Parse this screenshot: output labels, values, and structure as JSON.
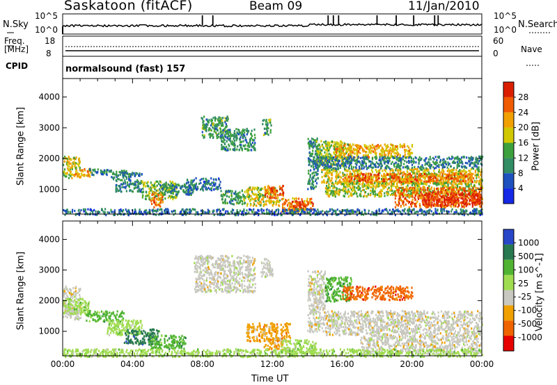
{
  "header": {
    "station": "Saskatoon (fitACF)",
    "beam": "Beam 09",
    "date": "11/Jan/2010"
  },
  "noise_panel": {
    "left_label": "N.Sky",
    "right_label": "N.Search",
    "left_ticks": [
      "10^5",
      "10^0"
    ],
    "right_ticks": [
      "10^5",
      "10^0"
    ],
    "spikes_hours": [
      8.0,
      8.6,
      15.2,
      15.5,
      15.8,
      18.0,
      19.1,
      20.1,
      21.3,
      21.5
    ]
  },
  "freq_panel": {
    "left_label_1": "Freq.",
    "left_label_2": "[MHz]",
    "right_label": "Nave",
    "left_ticks": [
      "18",
      "8"
    ],
    "right_ticks": [
      "60",
      "0"
    ]
  },
  "cpid": {
    "label": "CPID",
    "text": "normalsound (fast) 157"
  },
  "colors": {
    "power_scale": [
      "#1428e6",
      "#1e50be",
      "#328c64",
      "#3ca03c",
      "#d2c800",
      "#f0a000",
      "#f05a00",
      "#dc1e00"
    ],
    "velocity_scale": [
      "#2846c8",
      "#287850",
      "#50b432",
      "#a0dc50",
      "#c8c8c0",
      "#f0a000",
      "#f06400",
      "#e60000"
    ]
  },
  "chart_data": [
    {
      "type": "heatmap",
      "name": "power",
      "ylabel": "Slant Range [km]",
      "yticks": [
        "1000",
        "2000",
        "3000",
        "4000"
      ],
      "ylim": [
        200,
        4600
      ],
      "xlim": [
        0,
        24
      ],
      "colorbar": {
        "label": "Power [dB]",
        "ticks": [
          "4",
          "8",
          "12",
          "16",
          "20",
          "24",
          "28"
        ],
        "range": [
          0,
          32
        ]
      },
      "regions": [
        {
          "t0": 0.0,
          "t1": 1.0,
          "r0": 1400,
          "r1": 2100,
          "v": 18
        },
        {
          "t0": 0.6,
          "t1": 1.6,
          "r0": 1450,
          "r1": 1700,
          "v": 22
        },
        {
          "t0": 1.5,
          "t1": 2.7,
          "r0": 1500,
          "r1": 1700,
          "v": 10
        },
        {
          "t0": 2.7,
          "t1": 3.8,
          "r0": 1350,
          "r1": 1650,
          "v": 11
        },
        {
          "t0": 3.3,
          "t1": 4.5,
          "r0": 1450,
          "r1": 1600,
          "v": 9
        },
        {
          "t0": 3.0,
          "t1": 4.5,
          "r0": 950,
          "r1": 1350,
          "v": 10
        },
        {
          "t0": 4.5,
          "t1": 6.5,
          "r0": 700,
          "r1": 1300,
          "v": 15
        },
        {
          "t0": 5.0,
          "t1": 5.7,
          "r0": 450,
          "r1": 950,
          "v": 24
        },
        {
          "t0": 5.5,
          "t1": 7.5,
          "r0": 850,
          "r1": 1200,
          "v": 10
        },
        {
          "t0": 7.0,
          "t1": 9.0,
          "r0": 1000,
          "r1": 1400,
          "v": 8
        },
        {
          "t0": 7.9,
          "t1": 9.5,
          "r0": 2700,
          "r1": 3400,
          "v": 12
        },
        {
          "t0": 9.0,
          "t1": 11.0,
          "r0": 2300,
          "r1": 3000,
          "v": 11
        },
        {
          "t0": 11.4,
          "t1": 11.9,
          "r0": 2800,
          "r1": 3300,
          "v": 12
        },
        {
          "t0": 9.0,
          "t1": 10.5,
          "r0": 550,
          "r1": 1000,
          "v": 12
        },
        {
          "t0": 10.5,
          "t1": 12.4,
          "r0": 500,
          "r1": 1100,
          "v": 18
        },
        {
          "t0": 11.5,
          "t1": 12.6,
          "r0": 750,
          "r1": 1150,
          "v": 26
        },
        {
          "t0": 12.5,
          "t1": 14.2,
          "r0": 300,
          "r1": 750,
          "v": 22
        },
        {
          "t0": 13.0,
          "t1": 14.3,
          "r0": 350,
          "r1": 650,
          "v": 28
        },
        {
          "t0": 14.0,
          "t1": 14.6,
          "r0": 1000,
          "r1": 2700,
          "v": 10
        },
        {
          "t0": 14.5,
          "t1": 16.5,
          "r0": 1800,
          "r1": 2600,
          "v": 16
        },
        {
          "t0": 15.5,
          "t1": 20.0,
          "r0": 2050,
          "r1": 2500,
          "v": 21
        },
        {
          "t0": 14.8,
          "t1": 24.0,
          "r0": 1200,
          "r1": 1700,
          "v": 19
        },
        {
          "t0": 16.0,
          "t1": 23.5,
          "r0": 1250,
          "r1": 1550,
          "v": 25
        },
        {
          "t0": 15.0,
          "t1": 24.0,
          "r0": 800,
          "r1": 1250,
          "v": 17
        },
        {
          "t0": 19.0,
          "t1": 24.0,
          "r0": 450,
          "r1": 1100,
          "v": 26
        },
        {
          "t0": 20.5,
          "t1": 24.0,
          "r0": 500,
          "r1": 900,
          "v": 29
        },
        {
          "t0": 14.5,
          "t1": 24.0,
          "r0": 1700,
          "r1": 2100,
          "v": 9
        },
        {
          "t0": 0.0,
          "t1": 24.0,
          "r0": 200,
          "r1": 400,
          "v": 8
        }
      ]
    },
    {
      "type": "heatmap",
      "name": "velocity",
      "ylabel": "Slant Range [km]",
      "yticks": [
        "1000",
        "2000",
        "3000",
        "4000"
      ],
      "ylim": [
        200,
        4600
      ],
      "xlim": [
        0,
        24
      ],
      "colorbar": {
        "label": "Velocity [m s^-1]",
        "ticks": [
          "1000",
          "500",
          "100",
          "25",
          "-25",
          "-100",
          "-500",
          "-1000"
        ]
      },
      "regions": [
        {
          "t0": 0.0,
          "t1": 1.0,
          "r0": 1400,
          "r1": 2500,
          "c": 4
        },
        {
          "t0": 0.0,
          "t1": 1.5,
          "r0": 1600,
          "r1": 2100,
          "c": 3
        },
        {
          "t0": 1.2,
          "t1": 3.5,
          "r0": 1350,
          "r1": 1700,
          "c": 2
        },
        {
          "t0": 2.5,
          "t1": 4.5,
          "r0": 900,
          "r1": 1400,
          "c": 3
        },
        {
          "t0": 3.5,
          "t1": 5.5,
          "r0": 600,
          "r1": 1100,
          "c": 1
        },
        {
          "t0": 5.0,
          "t1": 7.0,
          "r0": 450,
          "r1": 900,
          "c": 2
        },
        {
          "t0": 7.5,
          "t1": 11.0,
          "r0": 2300,
          "r1": 3500,
          "c": 4
        },
        {
          "t0": 11.3,
          "t1": 12.0,
          "r0": 2800,
          "r1": 3400,
          "c": 4
        },
        {
          "t0": 10.5,
          "t1": 13.0,
          "r0": 700,
          "r1": 1300,
          "c": 5
        },
        {
          "t0": 11.5,
          "t1": 12.6,
          "r0": 400,
          "r1": 800,
          "c": 5
        },
        {
          "t0": 12.5,
          "t1": 14.5,
          "r0": 300,
          "r1": 750,
          "c": 3
        },
        {
          "t0": 14.0,
          "t1": 15.0,
          "r0": 1000,
          "r1": 3000,
          "c": 4
        },
        {
          "t0": 15.0,
          "t1": 16.5,
          "r0": 2000,
          "r1": 2800,
          "c": 2
        },
        {
          "t0": 16.0,
          "t1": 20.0,
          "r0": 2050,
          "r1": 2500,
          "c": 6
        },
        {
          "t0": 15.0,
          "t1": 24.0,
          "r0": 900,
          "r1": 1700,
          "c": 4
        },
        {
          "t0": 17.0,
          "t1": 24.0,
          "r0": 300,
          "r1": 900,
          "c": 4
        },
        {
          "t0": 0.0,
          "t1": 24.0,
          "r0": 200,
          "r1": 450,
          "c": 3
        }
      ]
    }
  ],
  "xaxis": {
    "ticks": [
      "00:00",
      "04:00",
      "08:00",
      "12:00",
      "16:00",
      "20:00",
      "00:00"
    ],
    "label": "Time UT"
  }
}
